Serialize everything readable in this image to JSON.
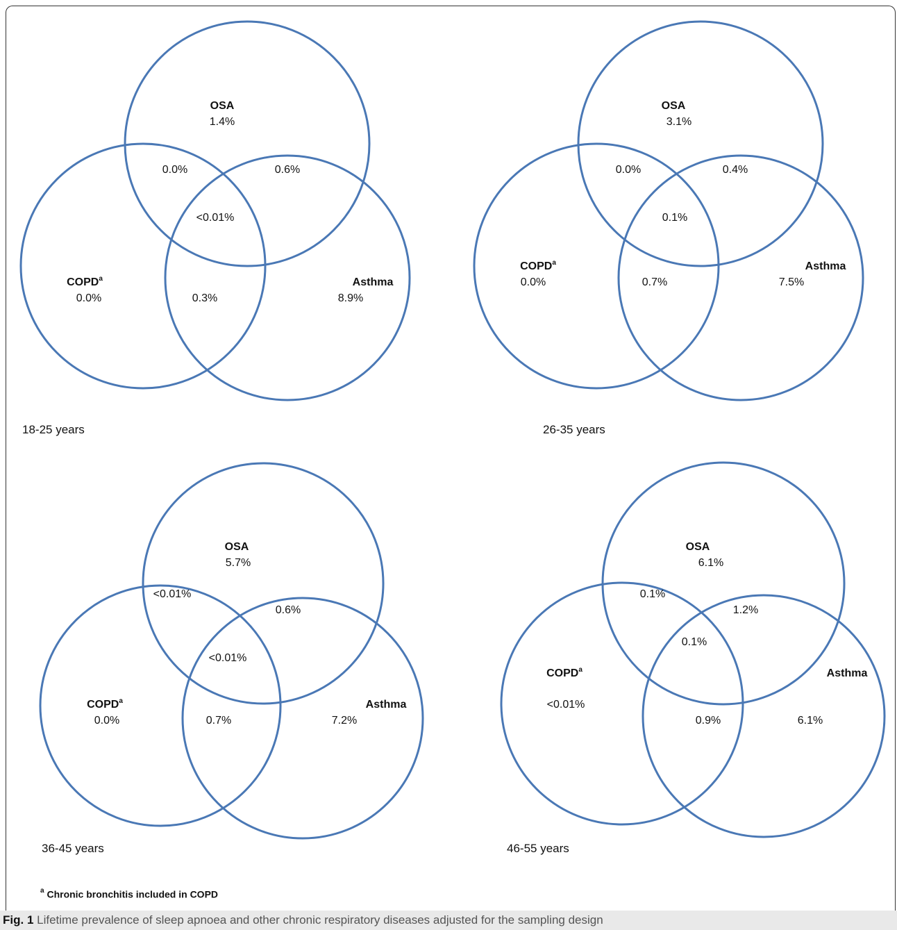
{
  "circle_color": "#4a78b5",
  "panels": [
    {
      "age_label": "18-25 years",
      "osa_label": "OSA",
      "osa_value": "1.4%",
      "copd_label": "COPD",
      "copd_sup": "a",
      "copd_value": "0.0%",
      "asthma_label": "Asthma",
      "asthma_value": "8.9%",
      "osa_copd": "0.0%",
      "osa_asthma": "0.6%",
      "all_three": "<0.01%",
      "copd_asthma": "0.3%"
    },
    {
      "age_label": "26-35 years",
      "osa_label": "OSA",
      "osa_value": "3.1%",
      "copd_label": "COPD",
      "copd_sup": "a",
      "copd_value": "0.0%",
      "asthma_label": "Asthma",
      "asthma_value": "7.5%",
      "osa_copd": "0.0%",
      "osa_asthma": "0.4%",
      "all_three": "0.1%",
      "copd_asthma": "0.7%"
    },
    {
      "age_label": "36-45 years",
      "osa_label": "OSA",
      "osa_value": "5.7%",
      "copd_label": "COPD",
      "copd_sup": "a",
      "copd_value": "0.0%",
      "asthma_label": "Asthma",
      "asthma_value": "7.2%",
      "osa_copd": "<0.01%",
      "osa_asthma": "0.6%",
      "all_three": "<0.01%",
      "copd_asthma": "0.7%"
    },
    {
      "age_label": "46-55 years",
      "osa_label": "OSA",
      "osa_value": "6.1%",
      "copd_label": "COPD",
      "copd_sup": "a",
      "copd_value": "<0.01%",
      "asthma_label": "Asthma",
      "asthma_value": "6.1%",
      "osa_copd": "0.1%",
      "osa_asthma": "1.2%",
      "all_three": "0.1%",
      "copd_asthma": "0.9%"
    }
  ],
  "footnote": {
    "sup": "a",
    "text": " Chronic bronchitis included in COPD"
  },
  "caption": {
    "fig": "Fig. 1",
    "text": " Lifetime prevalence of sleep apnoea and other chronic respiratory diseases adjusted for the sampling design"
  }
}
